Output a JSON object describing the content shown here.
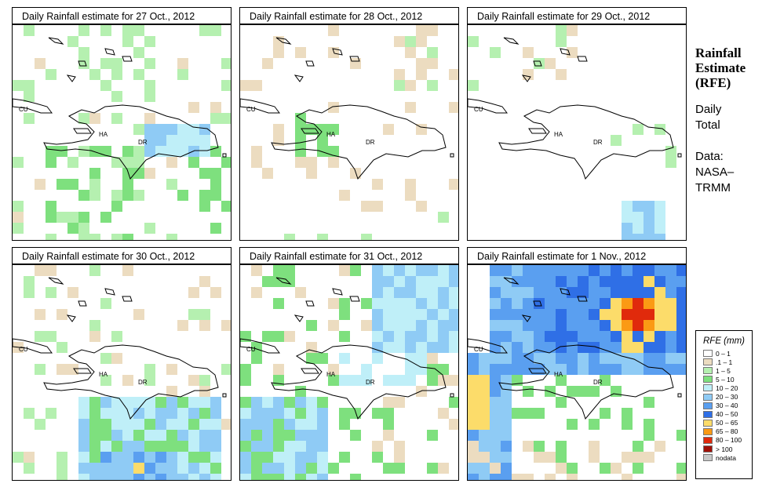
{
  "panels": [
    {
      "title": "Daily Rainfall estimate for  27 Oct., 2012",
      "seed": 27,
      "pattern": "d27"
    },
    {
      "title": "Daily Rainfall estimate for  28 Oct., 2012",
      "seed": 28,
      "pattern": "d28"
    },
    {
      "title": "Daily Rainfall estimate for  29 Oct., 2012",
      "seed": 29,
      "pattern": "d29"
    },
    {
      "title": "Daily Rainfall estimate for  30 Oct., 2012",
      "seed": 30,
      "pattern": "d30"
    },
    {
      "title": "Daily Rainfall estimate for  31 Oct., 2012",
      "seed": 31,
      "pattern": "d31"
    },
    {
      "title": "Daily Rainfall estimate for  1 Nov., 2012",
      "seed": 1,
      "pattern": "n01"
    }
  ],
  "map_labels": {
    "cuba": "CU",
    "haiti": "HA",
    "dominican_republic": "DR"
  },
  "side_panel": {
    "title_line1": "Rainfall",
    "title_line2": "Estimate",
    "title_line3": "(RFE)",
    "period_line1": "Daily",
    "period_line2": "Total",
    "source_line1": "Data:",
    "source_line2": "NASA–",
    "source_line3": "TRMM"
  },
  "legend": {
    "title": "RFE (mm)",
    "bins": [
      {
        "label": "0 – 1",
        "color": "#ffffff"
      },
      {
        "label": ".1 – 1",
        "color": "#ecdcc0"
      },
      {
        "label": "1 – 5",
        "color": "#b5f0b0"
      },
      {
        "label": "5 – 10",
        "color": "#7ee07e"
      },
      {
        "label": "10 – 20",
        "color": "#bfeff8"
      },
      {
        "label": "20 – 30",
        "color": "#8fcbf5"
      },
      {
        "label": "30 – 40",
        "color": "#5a9ff0"
      },
      {
        "label": "40 – 50",
        "color": "#2f6fe6"
      },
      {
        "label": "50 – 65",
        "color": "#fcdc6a"
      },
      {
        "label": "65 – 80",
        "color": "#fb9a14"
      },
      {
        "label": "80 – 100",
        "color": "#e02a0c"
      },
      {
        "label": "> 100",
        "color": "#a01008"
      },
      {
        "label": "nodata",
        "color": "#c8c8c8"
      }
    ]
  }
}
